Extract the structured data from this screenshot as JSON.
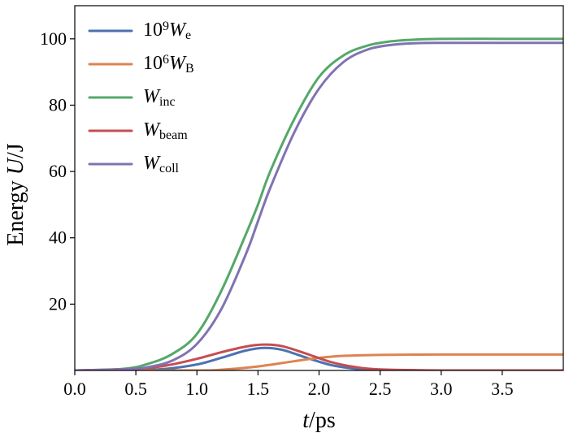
{
  "chart_data": {
    "type": "line",
    "xlabel": {
      "italic": "t",
      "rest": "/ps"
    },
    "ylabel": {
      "prefix": "Energy ",
      "italic": "U",
      "suffix": "/J"
    },
    "xlim": [
      0,
      4.0
    ],
    "ylim": [
      0,
      110
    ],
    "xticks": [
      0,
      0.5,
      1.0,
      1.5,
      2.0,
      2.5,
      3.0,
      3.5
    ],
    "xtick_labels": [
      "0.0",
      "0.5",
      "1.0",
      "1.5",
      "2.0",
      "2.5",
      "3.0",
      "3.5"
    ],
    "yticks": [
      20,
      40,
      60,
      80,
      100
    ],
    "ytick_labels": [
      "20",
      "40",
      "60",
      "80",
      "100"
    ],
    "grid": false,
    "legend_position": "upper-left",
    "series": [
      {
        "name_parts": [
          {
            "text": "10",
            "style": "normal"
          },
          {
            "text": "9",
            "style": "sup"
          },
          {
            "text": "W",
            "style": "italic"
          },
          {
            "text": "e",
            "style": "sub"
          }
        ],
        "color": "#4c72b0",
        "x": [
          0.0,
          0.5,
          0.75,
          1.0,
          1.2,
          1.4,
          1.55,
          1.7,
          1.9,
          2.1,
          2.3,
          2.5,
          3.0,
          3.5,
          4.0
        ],
        "y": [
          0.0,
          0.1,
          0.5,
          1.8,
          3.8,
          6.0,
          6.8,
          6.2,
          3.8,
          1.6,
          0.5,
          0.1,
          0.0,
          0.0,
          0.0
        ]
      },
      {
        "name_parts": [
          {
            "text": "10",
            "style": "normal"
          },
          {
            "text": "6",
            "style": "sup"
          },
          {
            "text": "W",
            "style": "italic"
          },
          {
            "text": "B",
            "style": "sub"
          }
        ],
        "color": "#dd8452",
        "x": [
          0.0,
          1.0,
          1.2,
          1.5,
          1.8,
          2.0,
          2.2,
          2.5,
          3.0,
          3.5,
          4.0
        ],
        "y": [
          0.0,
          0.0,
          0.2,
          1.2,
          2.8,
          3.8,
          4.4,
          4.7,
          4.8,
          4.8,
          4.8
        ]
      },
      {
        "name_parts": [
          {
            "text": "W",
            "style": "italic"
          },
          {
            "text": "inc",
            "style": "sub"
          }
        ],
        "color": "#55a868",
        "x": [
          0.0,
          0.4,
          0.6,
          0.8,
          1.0,
          1.2,
          1.4,
          1.5,
          1.6,
          1.8,
          2.0,
          2.2,
          2.4,
          2.6,
          2.8,
          3.0,
          3.5,
          4.0
        ],
        "y": [
          0.0,
          0.5,
          2.0,
          5.0,
          11.0,
          24.0,
          41.0,
          50.0,
          60.0,
          76.0,
          88.5,
          95.0,
          98.0,
          99.3,
          99.8,
          100.0,
          100.0,
          100.0
        ]
      },
      {
        "name_parts": [
          {
            "text": "W",
            "style": "italic"
          },
          {
            "text": "beam",
            "style": "sub"
          }
        ],
        "color": "#c44e52",
        "x": [
          0.0,
          0.5,
          0.75,
          1.0,
          1.2,
          1.4,
          1.55,
          1.7,
          1.9,
          2.1,
          2.3,
          2.5,
          3.0,
          3.5,
          4.0
        ],
        "y": [
          0.0,
          0.5,
          1.5,
          3.5,
          5.5,
          7.2,
          7.8,
          7.3,
          5.0,
          2.5,
          1.0,
          0.3,
          0.0,
          0.0,
          0.0
        ]
      },
      {
        "name_parts": [
          {
            "text": "W",
            "style": "italic"
          },
          {
            "text": "coll",
            "style": "sub"
          }
        ],
        "color": "#8172b3",
        "x": [
          0.0,
          0.4,
          0.6,
          0.8,
          1.0,
          1.2,
          1.4,
          1.5,
          1.6,
          1.8,
          2.0,
          2.2,
          2.4,
          2.6,
          2.8,
          3.0,
          3.5,
          4.0
        ],
        "y": [
          0.0,
          0.3,
          1.0,
          3.0,
          8.0,
          18.5,
          35.0,
          45.0,
          55.0,
          72.0,
          85.0,
          93.0,
          96.8,
          98.2,
          98.7,
          98.8,
          98.8,
          98.8
        ]
      }
    ]
  }
}
